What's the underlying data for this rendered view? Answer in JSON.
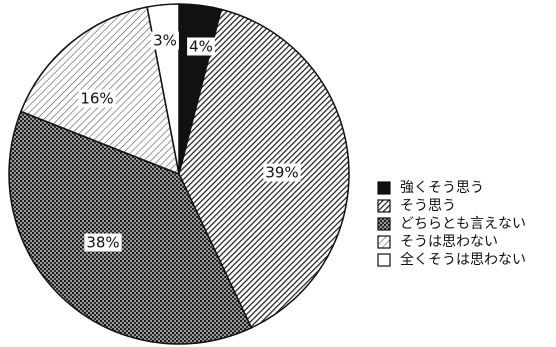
{
  "chart_data": {
    "type": "pie",
    "title": "",
    "categories": [
      "強くそう思う",
      "そう思う",
      "どちらとも言えない",
      "そうは思わない",
      "全くそうは思わない"
    ],
    "values": [
      4,
      39,
      38,
      16,
      3
    ],
    "value_labels": [
      "4%",
      "39%",
      "38%",
      "16%",
      "3%"
    ],
    "start_angle_deg": 0,
    "direction": "clockwise",
    "legend_placement": "right",
    "slice_fills": [
      "solid-black",
      "dense-diagonal-hatch",
      "crosshatch",
      "light-diagonal-hatch",
      "white"
    ],
    "colors": {
      "ink": "#111111",
      "paper": "#ffffff"
    }
  }
}
